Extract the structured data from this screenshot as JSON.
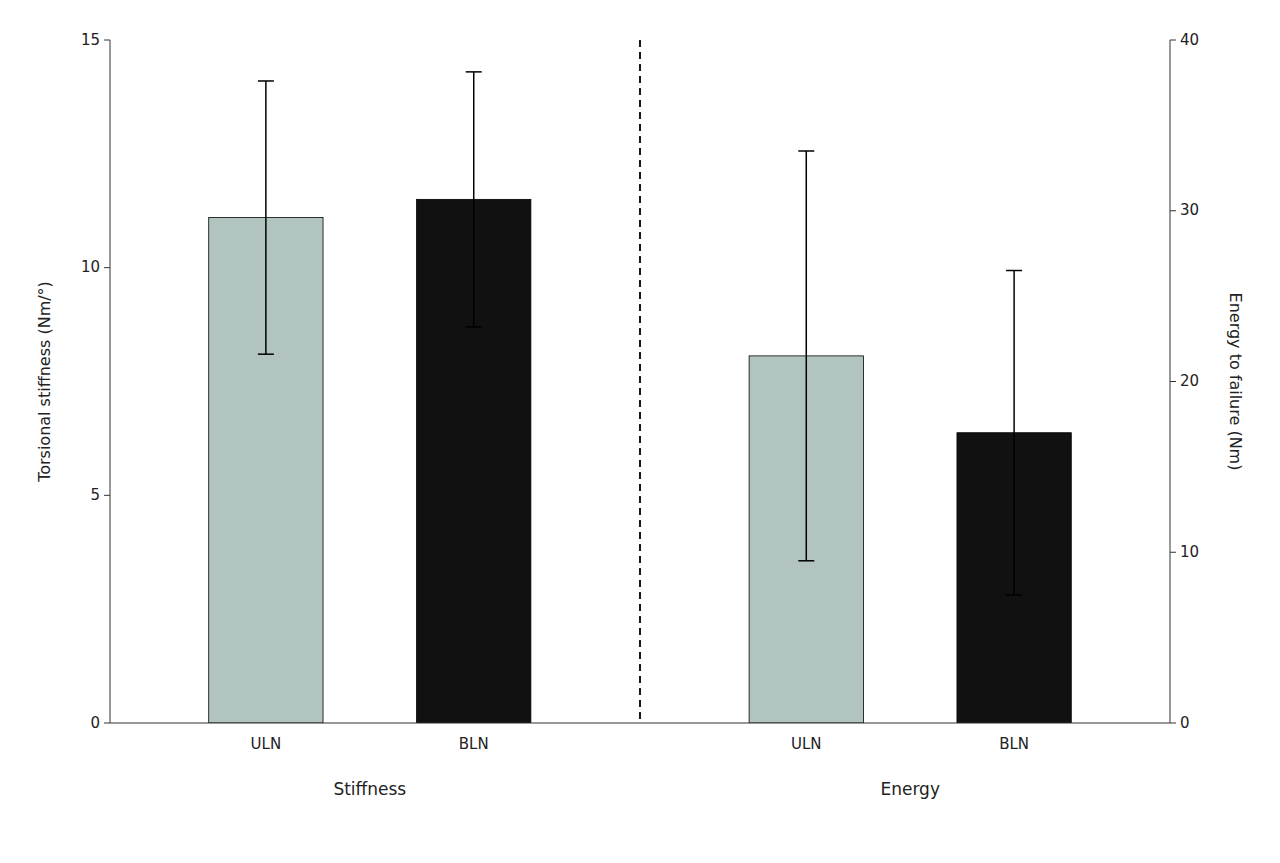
{
  "chart_data": {
    "type": "bar",
    "categories": [
      "ULN",
      "BLN",
      "ULN",
      "BLN"
    ],
    "colors": [
      "#b2c4c0",
      "#111111",
      "#b2c4c0",
      "#111111"
    ],
    "series": [
      {
        "name": "Stiffness",
        "values": [
          11.1,
          11.5,
          null,
          null
        ],
        "errors": [
          3.0,
          2.8,
          null,
          null
        ]
      },
      {
        "name": "Energy",
        "axis": "y2",
        "values": [
          null,
          null,
          21.5,
          17.0
        ],
        "errors": [
          null,
          null,
          12.0,
          9.5
        ]
      }
    ],
    "ylabel": "Torsional stiffness (Nm/°)",
    "y2label": "Energy to failure (Nm)",
    "ylim": [
      0,
      15
    ],
    "yticks": [
      0,
      5,
      10,
      15
    ],
    "y2lim": [
      0,
      40
    ],
    "y2ticks": [
      0,
      10,
      20,
      30,
      40
    ],
    "grid": false
  }
}
